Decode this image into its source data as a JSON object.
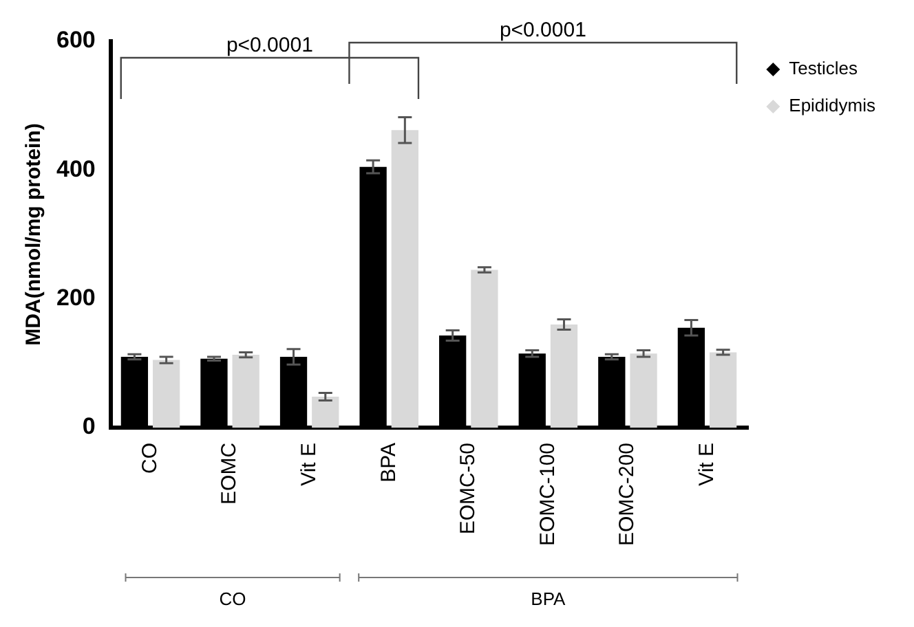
{
  "chart_data": {
    "type": "bar",
    "ylabel": "MDA(nmol/mg protein)",
    "categories": [
      "CO",
      "EOMC",
      "Vit E",
      "BPA",
      "EOMC-50",
      "EOMC-100",
      "EOMC-200",
      "Vit E"
    ],
    "series": [
      {
        "name": "Testicles",
        "color": "#000000",
        "values": [
          110,
          107,
          110,
          405,
          143,
          115,
          110,
          155
        ],
        "errors": [
          4,
          3,
          12,
          10,
          8,
          5,
          4,
          12
        ]
      },
      {
        "name": "Epididymis",
        "color": "#d9d9d9",
        "values": [
          105,
          113,
          48,
          462,
          245,
          160,
          115,
          117
        ],
        "errors": [
          5,
          4,
          6,
          20,
          4,
          8,
          5,
          4
        ]
      }
    ],
    "ylim": [
      0,
      600
    ],
    "yticks": [
      0,
      200,
      400,
      600
    ],
    "grid": false,
    "legend": "top right",
    "marker": "diamond",
    "annotations": [
      "p<0.0001",
      "p<0.0001",
      "CO",
      "BPA"
    ]
  }
}
